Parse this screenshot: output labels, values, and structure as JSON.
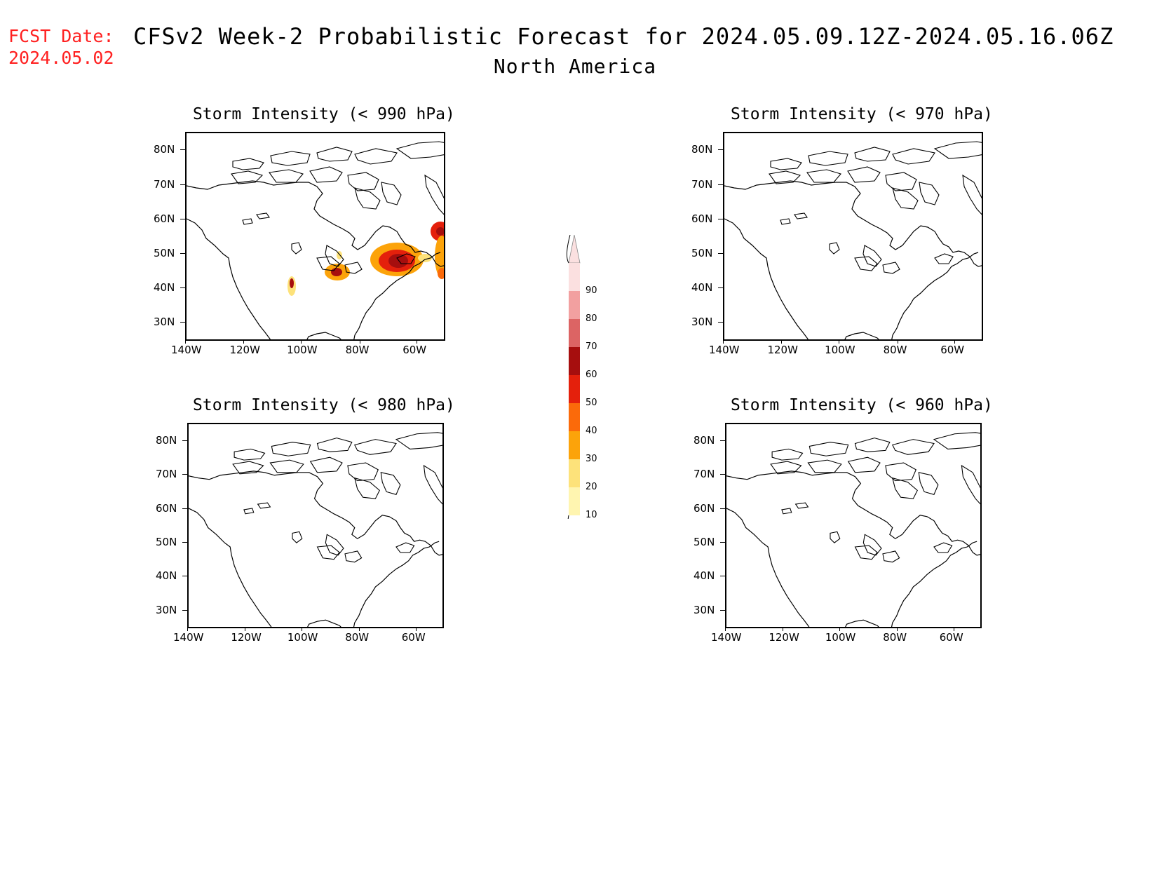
{
  "header": {
    "fcst_label": "FCST Date:",
    "fcst_date": "2024.05.02",
    "title": "CFSv2 Week-2 Probabilistic Forecast for 2024.05.09.12Z-2024.05.16.06Z",
    "subtitle": "North America"
  },
  "axes": {
    "lat_ticks": [
      "80N",
      "70N",
      "60N",
      "50N",
      "40N",
      "30N"
    ],
    "lon_ticks": [
      "140W",
      "120W",
      "100W",
      "80W",
      "60W"
    ]
  },
  "panels": [
    {
      "title": "Storm Intensity (< 990 hPa)",
      "has_data": true
    },
    {
      "title": "Storm Intensity (< 970 hPa)",
      "has_data": false
    },
    {
      "title": "Storm Intensity (< 980 hPa)",
      "has_data": false
    },
    {
      "title": "Storm Intensity (< 960 hPa)",
      "has_data": false
    }
  ],
  "colorbar": {
    "levels": [
      "10",
      "20",
      "30",
      "40",
      "50",
      "60",
      "70",
      "80",
      "90"
    ],
    "colors": [
      "#fff5b0",
      "#fde27a",
      "#fca30a",
      "#fb6a0a",
      "#e4200c",
      "#a60e0e",
      "#dc6464",
      "#f2a0a0",
      "#fbe0e0"
    ]
  }
}
